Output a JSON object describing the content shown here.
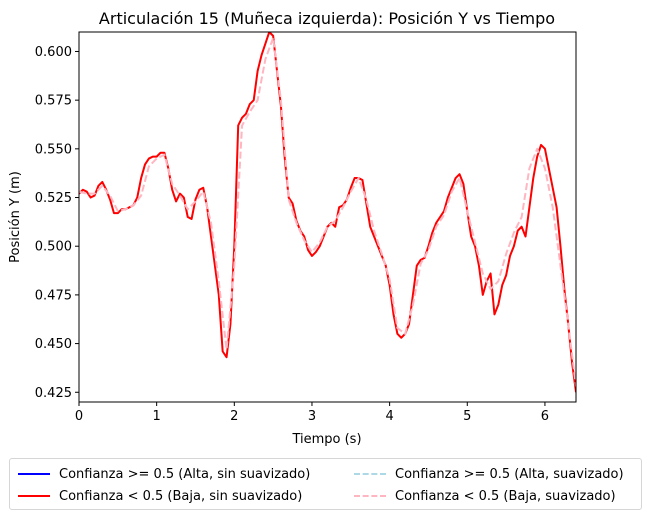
{
  "chart_data": {
    "type": "line",
    "title": "Articulación 15 (Muñeca izquierda): Posición Y vs Tiempo",
    "xlabel": "Tiempo (s)",
    "ylabel": "Posición Y (m)",
    "xlim": [
      0,
      6.4
    ],
    "ylim": [
      0.42,
      0.61
    ],
    "xticks": [
      0,
      1,
      2,
      3,
      4,
      5,
      6
    ],
    "yticks": [
      0.425,
      0.45,
      0.475,
      0.5,
      0.525,
      0.55,
      0.575,
      0.6
    ],
    "ytick_labels": [
      "0.425",
      "0.450",
      "0.475",
      "0.500",
      "0.525",
      "0.550",
      "0.575",
      "0.600"
    ],
    "grid": false,
    "legend_position": "bottom, 2 columns",
    "series": [
      {
        "name": "Confianza >= 0.5 (Alta, sin suavizado)",
        "color": "#0000ff",
        "style": "solid",
        "x": [],
        "y": []
      },
      {
        "name": "Confianza < 0.5 (Baja, sin suavizado)",
        "color": "#ff0000",
        "style": "solid",
        "x": [
          0.0,
          0.05,
          0.1,
          0.15,
          0.2,
          0.25,
          0.3,
          0.35,
          0.4,
          0.45,
          0.5,
          0.55,
          0.6,
          0.65,
          0.7,
          0.75,
          0.8,
          0.85,
          0.9,
          0.95,
          1.0,
          1.05,
          1.1,
          1.15,
          1.2,
          1.25,
          1.3,
          1.35,
          1.4,
          1.45,
          1.5,
          1.55,
          1.6,
          1.65,
          1.7,
          1.75,
          1.8,
          1.85,
          1.9,
          1.95,
          2.0,
          2.05,
          2.1,
          2.15,
          2.2,
          2.25,
          2.3,
          2.35,
          2.4,
          2.45,
          2.5,
          2.55,
          2.6,
          2.65,
          2.7,
          2.75,
          2.8,
          2.85,
          2.9,
          2.95,
          3.0,
          3.05,
          3.1,
          3.15,
          3.2,
          3.25,
          3.3,
          3.35,
          3.4,
          3.45,
          3.5,
          3.55,
          3.6,
          3.65,
          3.7,
          3.75,
          3.8,
          3.85,
          3.9,
          3.95,
          4.0,
          4.05,
          4.1,
          4.15,
          4.2,
          4.25,
          4.3,
          4.35,
          4.4,
          4.45,
          4.5,
          4.55,
          4.6,
          4.65,
          4.7,
          4.75,
          4.8,
          4.85,
          4.9,
          4.95,
          5.0,
          5.05,
          5.1,
          5.15,
          5.2,
          5.25,
          5.3,
          5.35,
          5.4,
          5.45,
          5.5,
          5.55,
          5.6,
          5.65,
          5.7,
          5.75,
          5.8,
          5.85,
          5.9,
          5.95,
          6.0,
          6.05,
          6.1,
          6.15,
          6.2,
          6.25,
          6.3,
          6.35,
          6.4
        ],
        "y": [
          0.527,
          0.529,
          0.528,
          0.525,
          0.526,
          0.531,
          0.533,
          0.529,
          0.524,
          0.517,
          0.517,
          0.519,
          0.519,
          0.52,
          0.521,
          0.525,
          0.535,
          0.542,
          0.545,
          0.546,
          0.546,
          0.548,
          0.548,
          0.54,
          0.529,
          0.523,
          0.527,
          0.525,
          0.515,
          0.514,
          0.524,
          0.529,
          0.53,
          0.52,
          0.505,
          0.49,
          0.475,
          0.446,
          0.443,
          0.46,
          0.5,
          0.562,
          0.566,
          0.568,
          0.573,
          0.575,
          0.59,
          0.598,
          0.604,
          0.61,
          0.608,
          0.59,
          0.572,
          0.545,
          0.525,
          0.522,
          0.513,
          0.508,
          0.505,
          0.498,
          0.495,
          0.497,
          0.5,
          0.505,
          0.51,
          0.512,
          0.51,
          0.52,
          0.521,
          0.524,
          0.53,
          0.535,
          0.535,
          0.534,
          0.522,
          0.51,
          0.505,
          0.5,
          0.495,
          0.49,
          0.48,
          0.465,
          0.455,
          0.453,
          0.455,
          0.46,
          0.475,
          0.49,
          0.493,
          0.494,
          0.5,
          0.507,
          0.512,
          0.515,
          0.518,
          0.525,
          0.53,
          0.535,
          0.537,
          0.532,
          0.518,
          0.505,
          0.5,
          0.49,
          0.475,
          0.482,
          0.486,
          0.465,
          0.47,
          0.48,
          0.485,
          0.495,
          0.5,
          0.508,
          0.51,
          0.505,
          0.52,
          0.535,
          0.546,
          0.552,
          0.55,
          0.54,
          0.53,
          0.52,
          0.5,
          0.478,
          0.46,
          0.44,
          0.425
        ]
      },
      {
        "name": "Confianza >= 0.5 (Alta, suavizado)",
        "color": "#add8e6",
        "style": "dashed",
        "x": [],
        "y": []
      },
      {
        "name": "Confianza < 0.5 (Baja, suavizado)",
        "color": "#ffb6c1",
        "style": "dashed",
        "x": [
          0.0,
          0.1,
          0.2,
          0.3,
          0.4,
          0.5,
          0.6,
          0.7,
          0.8,
          0.9,
          1.0,
          1.1,
          1.2,
          1.3,
          1.4,
          1.5,
          1.6,
          1.7,
          1.8,
          1.9,
          2.0,
          2.1,
          2.2,
          2.3,
          2.4,
          2.5,
          2.6,
          2.7,
          2.8,
          2.9,
          3.0,
          3.1,
          3.2,
          3.3,
          3.4,
          3.5,
          3.6,
          3.7,
          3.8,
          3.9,
          4.0,
          4.1,
          4.2,
          4.3,
          4.4,
          4.5,
          4.6,
          4.7,
          4.8,
          4.9,
          5.0,
          5.1,
          5.2,
          5.3,
          5.4,
          5.5,
          5.6,
          5.7,
          5.8,
          5.9,
          6.0,
          6.1,
          6.2,
          6.3,
          6.4
        ],
        "y": [
          0.528,
          0.527,
          0.527,
          0.531,
          0.526,
          0.518,
          0.519,
          0.521,
          0.526,
          0.541,
          0.545,
          0.547,
          0.532,
          0.526,
          0.519,
          0.523,
          0.528,
          0.512,
          0.482,
          0.447,
          0.49,
          0.562,
          0.569,
          0.575,
          0.596,
          0.607,
          0.575,
          0.524,
          0.512,
          0.503,
          0.497,
          0.502,
          0.51,
          0.513,
          0.52,
          0.528,
          0.535,
          0.524,
          0.508,
          0.496,
          0.483,
          0.458,
          0.455,
          0.47,
          0.491,
          0.498,
          0.51,
          0.516,
          0.528,
          0.535,
          0.518,
          0.502,
          0.486,
          0.478,
          0.482,
          0.496,
          0.507,
          0.515,
          0.54,
          0.55,
          0.54,
          0.52,
          0.49,
          0.46,
          0.428
        ]
      }
    ]
  }
}
